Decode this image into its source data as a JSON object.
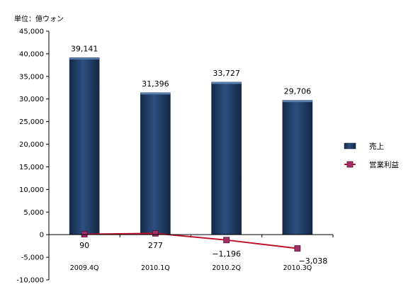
{
  "chart_data": {
    "type": "bar",
    "unit_label": "単位：億ウォン",
    "categories": [
      "2009.4Q",
      "2010.1Q",
      "2010.2Q",
      "2010.3Q"
    ],
    "series": [
      {
        "name": "売上",
        "type": "bar",
        "color": "#1f3a5f",
        "values": [
          39141,
          31396,
          33727,
          29706
        ],
        "labels": [
          "39,141",
          "31,396",
          "33,727",
          "29,706"
        ]
      },
      {
        "name": "営業利益",
        "type": "line",
        "color": "#c0102a",
        "marker_color": "#a0306a",
        "values": [
          90,
          277,
          -1196,
          -3038
        ],
        "labels": [
          "90",
          "277",
          "−1,196",
          "−3,038"
        ]
      }
    ],
    "ylim": [
      -10000,
      45000
    ],
    "yticks": [
      -10000,
      -5000,
      0,
      5000,
      10000,
      15000,
      20000,
      25000,
      30000,
      35000,
      40000,
      45000
    ],
    "ytick_labels": [
      "-10,000",
      "-5,000",
      "0",
      "5,000",
      "10,000",
      "15,000",
      "20,000",
      "25,000",
      "30,000",
      "35,000",
      "40,000",
      "45,000"
    ],
    "grid": false,
    "legend_position": "right"
  }
}
